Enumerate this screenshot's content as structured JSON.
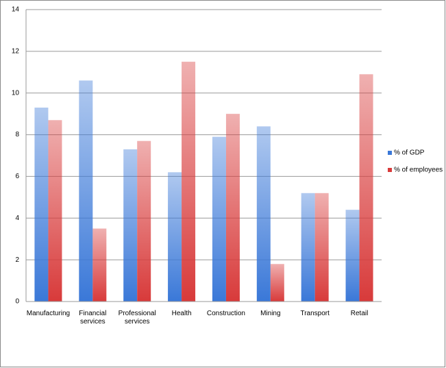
{
  "chart_data": {
    "type": "bar",
    "categories": [
      "Manufacturing",
      "Financial services",
      "Professional services",
      "Health",
      "Construction",
      "Mining",
      "Transport",
      "Retail"
    ],
    "series": [
      {
        "name": "% of GDP",
        "color": "#3a78d8",
        "values": [
          9.3,
          10.6,
          7.3,
          6.2,
          7.9,
          8.4,
          5.2,
          4.4
        ]
      },
      {
        "name": "% of employees",
        "color": "#d83a3a",
        "values": [
          8.7,
          3.5,
          7.7,
          11.5,
          9.0,
          1.8,
          5.2,
          10.9
        ]
      }
    ],
    "ylim": [
      0,
      14
    ],
    "yticks": [
      0,
      2,
      4,
      6,
      8,
      10,
      12,
      14
    ],
    "grid": true,
    "legend": "right"
  }
}
